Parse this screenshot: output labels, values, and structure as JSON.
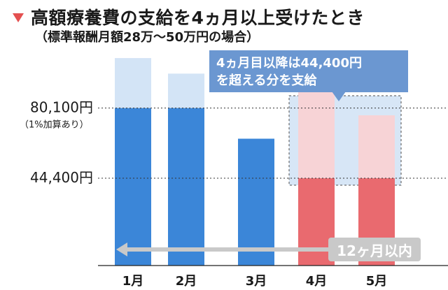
{
  "header": {
    "title": "高額療養費の支給を4ヵ月以上受けたとき",
    "subtitle": "（標準報酬月額28万～50万円の場合）"
  },
  "callout": {
    "line1": "4ヵ月目以降は44,400円",
    "line2": "を超える分を支給"
  },
  "badge": {
    "label": "12ヶ月以内"
  },
  "chart_data": {
    "type": "bar",
    "categories": [
      "1月",
      "2月",
      "3月",
      "4月",
      "5月"
    ],
    "series": [
      {
        "values": [
          80100,
          80100,
          64500,
          44400,
          44400
        ]
      },
      {
        "values": [
          25400,
          17500,
          0,
          50000,
          32000
        ]
      }
    ],
    "reference_lines": [
      {
        "value": 80100,
        "label": "80,100円",
        "sublabel": "（1%加算あり）"
      },
      {
        "value": 44400,
        "label": "44,400円"
      }
    ],
    "ylim": [
      0,
      113000
    ],
    "grid": false,
    "colors": {
      "stack_1_normal": "#3b86d8",
      "stack_1_highlight": "#e96a6f",
      "stack_2_normal": "#d3e4f6",
      "stack_2_highlight": "#f7d3d6",
      "callout": "#6b97d1",
      "arrow": "#c9c9c9"
    }
  }
}
